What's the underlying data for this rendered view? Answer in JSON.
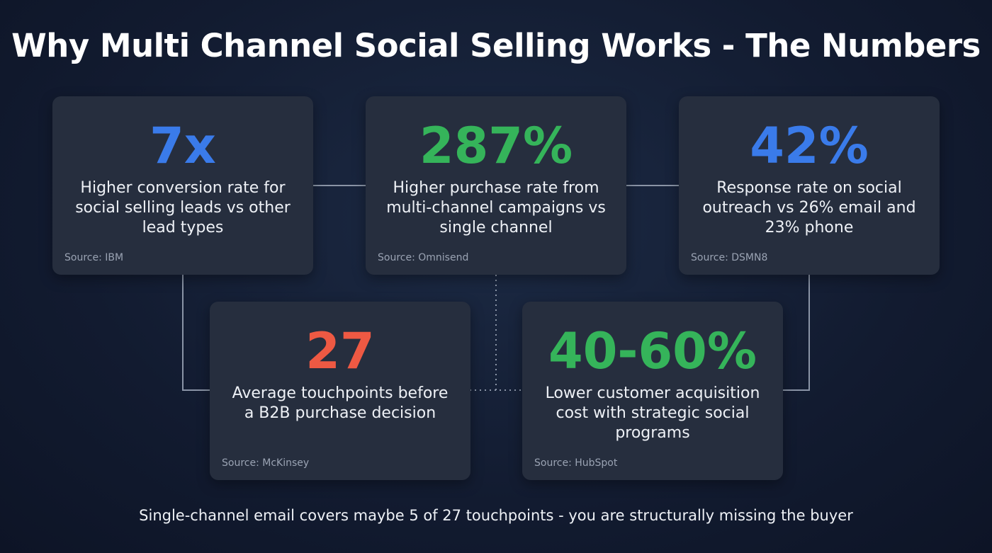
{
  "header": {
    "title": "Why Multi Channel Social Selling Works - The Numbers"
  },
  "cards": [
    {
      "stat": "7x",
      "description": "Higher conversion rate for social selling leads vs other lead types",
      "source": "Source: IBM"
    },
    {
      "stat": "287%",
      "description": "Higher purchase rate from multi-channel campaigns vs single channel",
      "source": "Source: Omnisend"
    },
    {
      "stat": "42%",
      "description": "Response rate on social outreach vs 26% email and 23% phone",
      "source": "Source: DSMN8"
    },
    {
      "stat": "27",
      "description": "Average touchpoints before a B2B purchase decision",
      "source": "Source: McKinsey"
    },
    {
      "stat": "40-60%",
      "description": "Lower customer acquisition cost with strategic social programs",
      "source": "Source: HubSpot"
    }
  ],
  "footer": {
    "text": "Single-channel email covers maybe 5 of 27 touchpoints - you are structurally missing the buyer"
  }
}
